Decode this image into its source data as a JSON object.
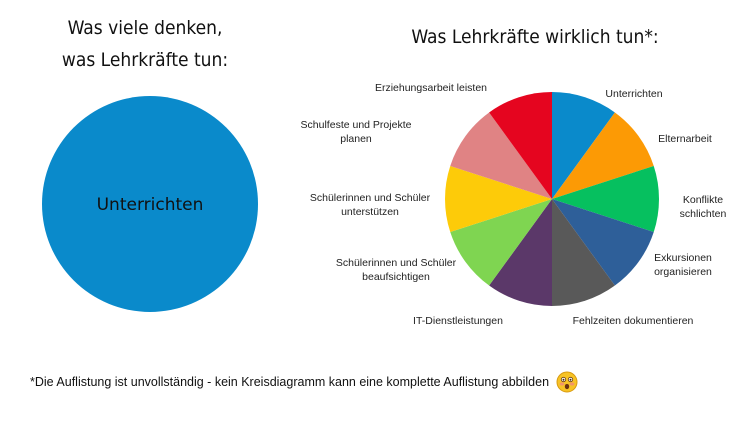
{
  "left": {
    "title_line1": "Was viele denken,",
    "title_line2": "was Lehrkräfte tun:"
  },
  "right": {
    "title": "Was Lehrkräfte wirklich tun*:"
  },
  "footnote": {
    "text": "*Die Auflistung ist unvollständig - kein Kreisdiagramm kann eine komplette Auflistung abbilden",
    "emoji": "astonished-face-icon"
  },
  "chart_data": [
    {
      "type": "pie",
      "title": "Was viele denken, was Lehrkräfte tun:",
      "slices": [
        {
          "label": "Unterrichten",
          "value": 100,
          "color": "#0a8acb"
        }
      ]
    },
    {
      "type": "pie",
      "title": "Was Lehrkräfte wirklich tun*:",
      "slices": [
        {
          "label": "Unterrichten",
          "value": 10,
          "color": "#0a8acb"
        },
        {
          "label": "Elternarbeit",
          "value": 10,
          "color": "#fc9a05"
        },
        {
          "label": "Konflikte schlichten",
          "value": 10,
          "color": "#06c05f"
        },
        {
          "label": "Exkursionen organisieren",
          "value": 10,
          "color": "#2e5f99"
        },
        {
          "label": "Fehlzeiten dokumentieren",
          "value": 10,
          "color": "#595959"
        },
        {
          "label": "IT-Dienstleistungen",
          "value": 10,
          "color": "#5b3869"
        },
        {
          "label": "Schülerinnen und Schüler beaufsichtigen",
          "value": 10,
          "color": "#7fd551"
        },
        {
          "label": "Schülerinnen und Schüler unterstützen",
          "value": 10,
          "color": "#fdcb09"
        },
        {
          "label": "Schulfeste und Projekte planen",
          "value": 10,
          "color": "#e08384"
        },
        {
          "label": "Erziehungsarbeit leisten",
          "value": 10,
          "color": "#e5051f"
        }
      ]
    }
  ]
}
